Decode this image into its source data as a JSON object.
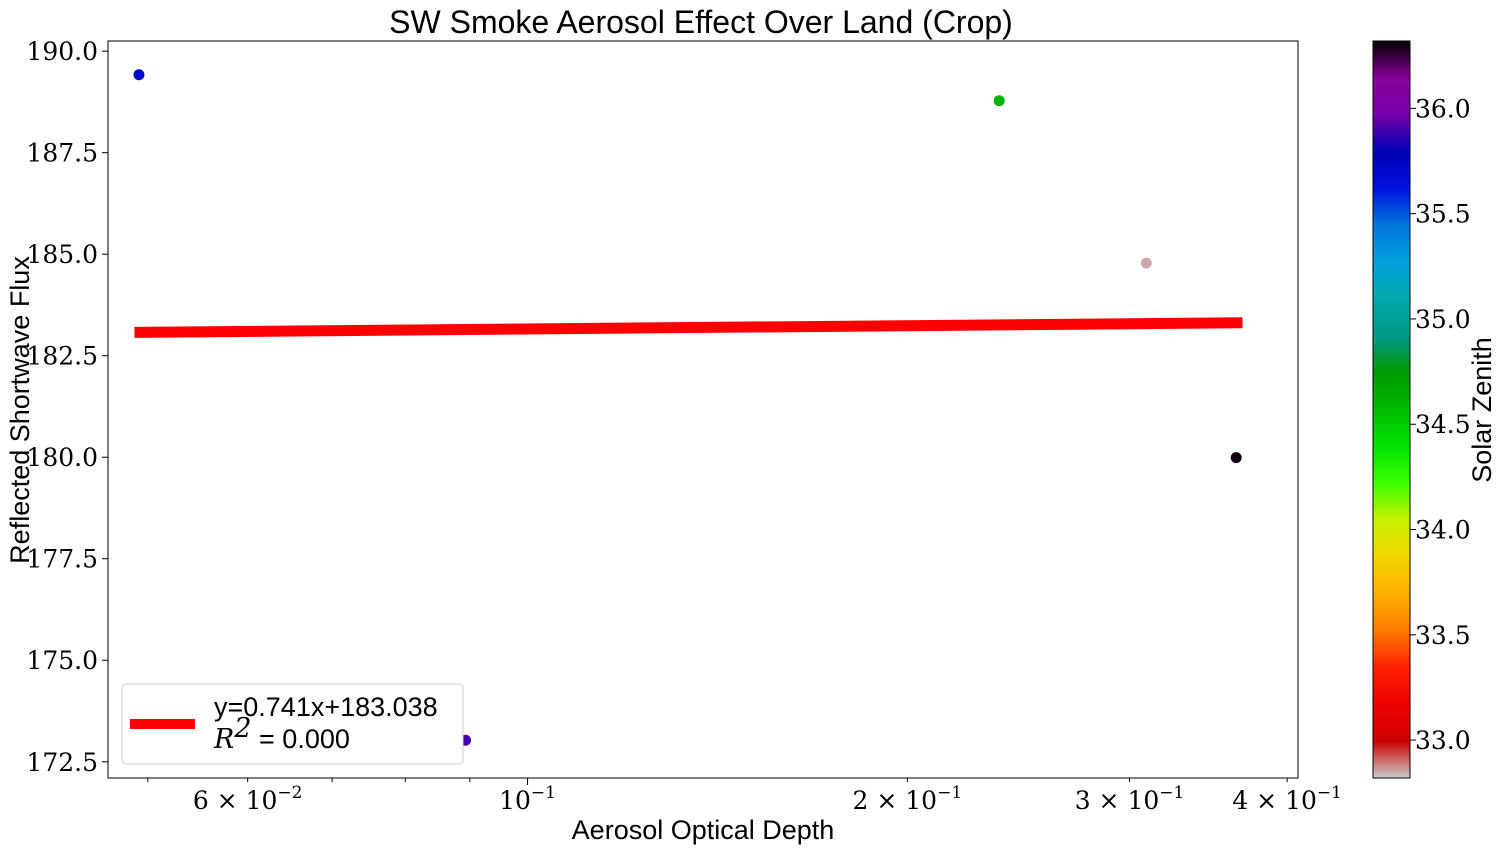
{
  "chart_data": {
    "type": "scatter",
    "title": "SW Smoke Aerosol Effect Over Land (Crop)",
    "xlabel": "Aerosol Optical Depth",
    "ylabel": "Reflected Shortwave Flux",
    "xscale": "log",
    "xlim": [
      0.0465,
      0.408
    ],
    "ylim": [
      172.1,
      190.25
    ],
    "grid": false,
    "x_tick_labels": [
      {
        "value": 0.06,
        "mantissa": "6",
        "exponent": "−2"
      },
      {
        "value": 0.1,
        "mantissa": "",
        "exponent": "−1"
      },
      {
        "value": 0.2,
        "mantissa": "2",
        "exponent": "−1"
      },
      {
        "value": 0.3,
        "mantissa": "3",
        "exponent": "−1"
      },
      {
        "value": 0.4,
        "mantissa": "4",
        "exponent": "−1"
      }
    ],
    "y_ticks": [
      172.5,
      175.0,
      177.5,
      180.0,
      182.5,
      185.0,
      187.5,
      190.0
    ],
    "points": [
      {
        "x": 0.0492,
        "y": 189.42,
        "solar_zenith": 35.7
      },
      {
        "x": 0.0893,
        "y": 173.03,
        "solar_zenith": 35.9
      },
      {
        "x": 0.2365,
        "y": 188.78,
        "solar_zenith": 34.6
      },
      {
        "x": 0.3093,
        "y": 184.78,
        "solar_zenith": 32.85
      },
      {
        "x": 0.3645,
        "y": 179.99,
        "solar_zenith": 36.3
      }
    ],
    "fit_line": {
      "x": [
        0.0488,
        0.3687
      ],
      "y": [
        183.074,
        183.311
      ],
      "color": "#ff0000"
    },
    "legend": {
      "position": "lower-left",
      "equation": "y=0.741x+183.038",
      "r2_label": "R",
      "r2_sup": "2",
      "r2_value": " = 0.000"
    },
    "colorbar": {
      "label": "Solar Zenith",
      "range": [
        32.82,
        36.32
      ],
      "ticks": [
        "33.0",
        "33.5",
        "34.0",
        "34.5",
        "35.0",
        "35.5",
        "36.0"
      ],
      "colormap": "nipy_spectral"
    }
  }
}
